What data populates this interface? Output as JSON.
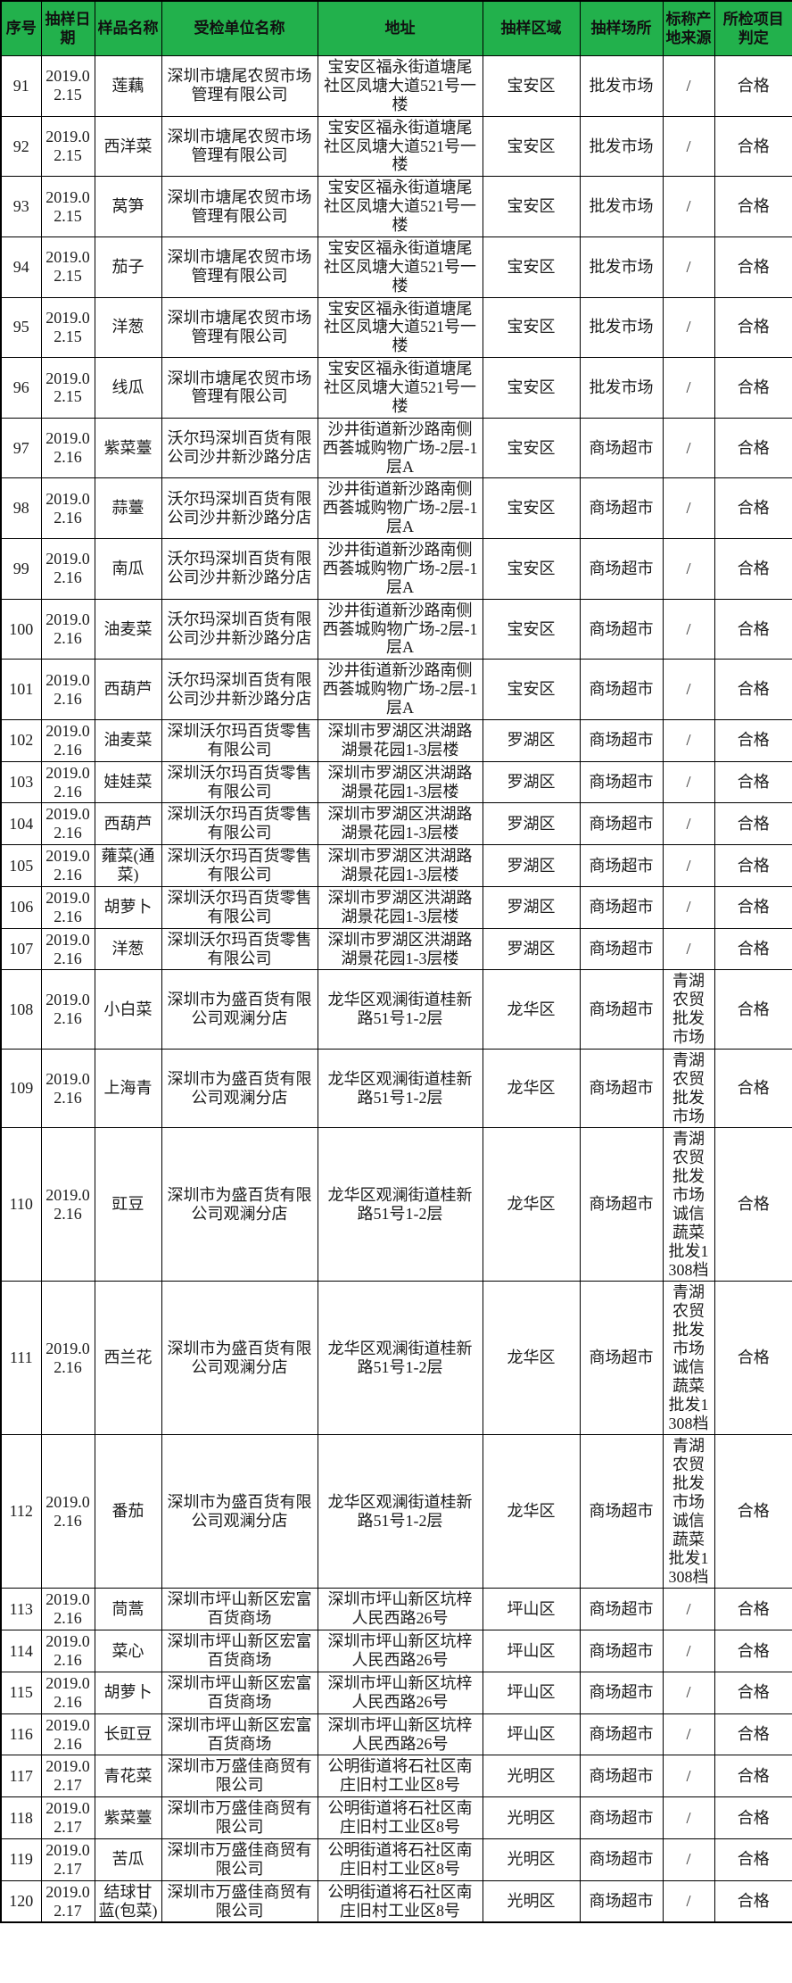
{
  "colors": {
    "header_bg": "#22b14c",
    "border": "#000000",
    "body_text": "#1c1c1c",
    "header_text": "#111111"
  },
  "table": {
    "columns": [
      "序号",
      "抽样日期",
      "样品名称",
      "受检单位名称",
      "地址",
      "抽样区域",
      "抽样场所",
      "标称产地来源",
      "所检项目判定"
    ],
    "rows": [
      {
        "no": "91",
        "date": "2019.02.15",
        "name": "莲藕",
        "unit": "深圳市塘尾农贸市场管理有限公司",
        "address": "宝安区福永街道塘尾社区凤塘大道521号一楼",
        "region": "宝安区",
        "place": "批发市场",
        "source": "/",
        "result": "合格"
      },
      {
        "no": "92",
        "date": "2019.02.15",
        "name": "西洋菜",
        "unit": "深圳市塘尾农贸市场管理有限公司",
        "address": "宝安区福永街道塘尾社区凤塘大道521号一楼",
        "region": "宝安区",
        "place": "批发市场",
        "source": "/",
        "result": "合格"
      },
      {
        "no": "93",
        "date": "2019.02.15",
        "name": "莴笋",
        "unit": "深圳市塘尾农贸市场管理有限公司",
        "address": "宝安区福永街道塘尾社区凤塘大道521号一楼",
        "region": "宝安区",
        "place": "批发市场",
        "source": "/",
        "result": "合格"
      },
      {
        "no": "94",
        "date": "2019.02.15",
        "name": "茄子",
        "unit": "深圳市塘尾农贸市场管理有限公司",
        "address": "宝安区福永街道塘尾社区凤塘大道521号一楼",
        "region": "宝安区",
        "place": "批发市场",
        "source": "/",
        "result": "合格"
      },
      {
        "no": "95",
        "date": "2019.02.15",
        "name": "洋葱",
        "unit": "深圳市塘尾农贸市场管理有限公司",
        "address": "宝安区福永街道塘尾社区凤塘大道521号一楼",
        "region": "宝安区",
        "place": "批发市场",
        "source": "/",
        "result": "合格"
      },
      {
        "no": "96",
        "date": "2019.02.15",
        "name": "线瓜",
        "unit": "深圳市塘尾农贸市场管理有限公司",
        "address": "宝安区福永街道塘尾社区凤塘大道521号一楼",
        "region": "宝安区",
        "place": "批发市场",
        "source": "/",
        "result": "合格"
      },
      {
        "no": "97",
        "date": "2019.02.16",
        "name": "紫菜薹",
        "unit": "沃尔玛深圳百货有限公司沙井新沙路分店",
        "address": "沙井街道新沙路南侧西荟城购物广场-2层-1层A",
        "region": "宝安区",
        "place": "商场超市",
        "source": "/",
        "result": "合格"
      },
      {
        "no": "98",
        "date": "2019.02.16",
        "name": "蒜薹",
        "unit": "沃尔玛深圳百货有限公司沙井新沙路分店",
        "address": "沙井街道新沙路南侧西荟城购物广场-2层-1层A",
        "region": "宝安区",
        "place": "商场超市",
        "source": "/",
        "result": "合格"
      },
      {
        "no": "99",
        "date": "2019.02.16",
        "name": "南瓜",
        "unit": "沃尔玛深圳百货有限公司沙井新沙路分店",
        "address": "沙井街道新沙路南侧西荟城购物广场-2层-1层A",
        "region": "宝安区",
        "place": "商场超市",
        "source": "/",
        "result": "合格"
      },
      {
        "no": "100",
        "date": "2019.02.16",
        "name": "油麦菜",
        "unit": "沃尔玛深圳百货有限公司沙井新沙路分店",
        "address": "沙井街道新沙路南侧西荟城购物广场-2层-1层A",
        "region": "宝安区",
        "place": "商场超市",
        "source": "/",
        "result": "合格"
      },
      {
        "no": "101",
        "date": "2019.02.16",
        "name": "西葫芦",
        "unit": "沃尔玛深圳百货有限公司沙井新沙路分店",
        "address": "沙井街道新沙路南侧西荟城购物广场-2层-1层A",
        "region": "宝安区",
        "place": "商场超市",
        "source": "/",
        "result": "合格"
      },
      {
        "no": "102",
        "date": "2019.02.16",
        "name": "油麦菜",
        "unit": "深圳沃尔玛百货零售有限公司",
        "address": "深圳市罗湖区洪湖路湖景花园1-3层楼",
        "region": "罗湖区",
        "place": "商场超市",
        "source": "/",
        "result": "合格"
      },
      {
        "no": "103",
        "date": "2019.02.16",
        "name": "娃娃菜",
        "unit": "深圳沃尔玛百货零售有限公司",
        "address": "深圳市罗湖区洪湖路湖景花园1-3层楼",
        "region": "罗湖区",
        "place": "商场超市",
        "source": "/",
        "result": "合格"
      },
      {
        "no": "104",
        "date": "2019.02.16",
        "name": "西葫芦",
        "unit": "深圳沃尔玛百货零售有限公司",
        "address": "深圳市罗湖区洪湖路湖景花园1-3层楼",
        "region": "罗湖区",
        "place": "商场超市",
        "source": "/",
        "result": "合格"
      },
      {
        "no": "105",
        "date": "2019.02.16",
        "name": "蕹菜(通菜)",
        "unit": "深圳沃尔玛百货零售有限公司",
        "address": "深圳市罗湖区洪湖路湖景花园1-3层楼",
        "region": "罗湖区",
        "place": "商场超市",
        "source": "/",
        "result": "合格"
      },
      {
        "no": "106",
        "date": "2019.02.16",
        "name": "胡萝卜",
        "unit": "深圳沃尔玛百货零售有限公司",
        "address": "深圳市罗湖区洪湖路湖景花园1-3层楼",
        "region": "罗湖区",
        "place": "商场超市",
        "source": "/",
        "result": "合格"
      },
      {
        "no": "107",
        "date": "2019.02.16",
        "name": "洋葱",
        "unit": "深圳沃尔玛百货零售有限公司",
        "address": "深圳市罗湖区洪湖路湖景花园1-3层楼",
        "region": "罗湖区",
        "place": "商场超市",
        "source": "/",
        "result": "合格"
      },
      {
        "no": "108",
        "date": "2019.02.16",
        "name": "小白菜",
        "unit": "深圳市为盛百货有限公司观澜分店",
        "address": "龙华区观澜街道桂新路51号1-2层",
        "region": "龙华区",
        "place": "商场超市",
        "source": "青湖农贸批发市场",
        "result": "合格"
      },
      {
        "no": "109",
        "date": "2019.02.16",
        "name": "上海青",
        "unit": "深圳市为盛百货有限公司观澜分店",
        "address": "龙华区观澜街道桂新路51号1-2层",
        "region": "龙华区",
        "place": "商场超市",
        "source": "青湖农贸批发市场",
        "result": "合格"
      },
      {
        "no": "110",
        "date": "2019.02.16",
        "name": "豇豆",
        "unit": "深圳市为盛百货有限公司观澜分店",
        "address": "龙华区观澜街道桂新路51号1-2层",
        "region": "龙华区",
        "place": "商场超市",
        "source": "青湖农贸批发市场诚信蔬菜批发1308档",
        "result": "合格"
      },
      {
        "no": "111",
        "date": "2019.02.16",
        "name": "西兰花",
        "unit": "深圳市为盛百货有限公司观澜分店",
        "address": "龙华区观澜街道桂新路51号1-2层",
        "region": "龙华区",
        "place": "商场超市",
        "source": "青湖农贸批发市场诚信蔬菜批发1308档",
        "result": "合格"
      },
      {
        "no": "112",
        "date": "2019.02.16",
        "name": "番茄",
        "unit": "深圳市为盛百货有限公司观澜分店",
        "address": "龙华区观澜街道桂新路51号1-2层",
        "region": "龙华区",
        "place": "商场超市",
        "source": "青湖农贸批发市场诚信蔬菜批发1308档",
        "result": "合格"
      },
      {
        "no": "113",
        "date": "2019.02.16",
        "name": "茼蒿",
        "unit": "深圳市坪山新区宏富百货商场",
        "address": "深圳市坪山新区坑梓人民西路26号",
        "region": "坪山区",
        "place": "商场超市",
        "source": "/",
        "result": "合格"
      },
      {
        "no": "114",
        "date": "2019.02.16",
        "name": "菜心",
        "unit": "深圳市坪山新区宏富百货商场",
        "address": "深圳市坪山新区坑梓人民西路26号",
        "region": "坪山区",
        "place": "商场超市",
        "source": "/",
        "result": "合格"
      },
      {
        "no": "115",
        "date": "2019.02.16",
        "name": "胡萝卜",
        "unit": "深圳市坪山新区宏富百货商场",
        "address": "深圳市坪山新区坑梓人民西路26号",
        "region": "坪山区",
        "place": "商场超市",
        "source": "/",
        "result": "合格"
      },
      {
        "no": "116",
        "date": "2019.02.16",
        "name": "长豇豆",
        "unit": "深圳市坪山新区宏富百货商场",
        "address": "深圳市坪山新区坑梓人民西路26号",
        "region": "坪山区",
        "place": "商场超市",
        "source": "/",
        "result": "合格"
      },
      {
        "no": "117",
        "date": "2019.02.17",
        "name": "青花菜",
        "unit": "深圳市万盛佳商贸有限公司",
        "address": "公明街道将石社区南庄旧村工业区8号",
        "region": "光明区",
        "place": "商场超市",
        "source": "/",
        "result": "合格"
      },
      {
        "no": "118",
        "date": "2019.02.17",
        "name": "紫菜薹",
        "unit": "深圳市万盛佳商贸有限公司",
        "address": "公明街道将石社区南庄旧村工业区8号",
        "region": "光明区",
        "place": "商场超市",
        "source": "/",
        "result": "合格"
      },
      {
        "no": "119",
        "date": "2019.02.17",
        "name": "苦瓜",
        "unit": "深圳市万盛佳商贸有限公司",
        "address": "公明街道将石社区南庄旧村工业区8号",
        "region": "光明区",
        "place": "商场超市",
        "source": "/",
        "result": "合格"
      },
      {
        "no": "120",
        "date": "2019.02.17",
        "name": "结球甘蓝(包菜)",
        "unit": "深圳市万盛佳商贸有限公司",
        "address": "公明街道将石社区南庄旧村工业区8号",
        "region": "光明区",
        "place": "商场超市",
        "source": "/",
        "result": "合格"
      }
    ]
  }
}
